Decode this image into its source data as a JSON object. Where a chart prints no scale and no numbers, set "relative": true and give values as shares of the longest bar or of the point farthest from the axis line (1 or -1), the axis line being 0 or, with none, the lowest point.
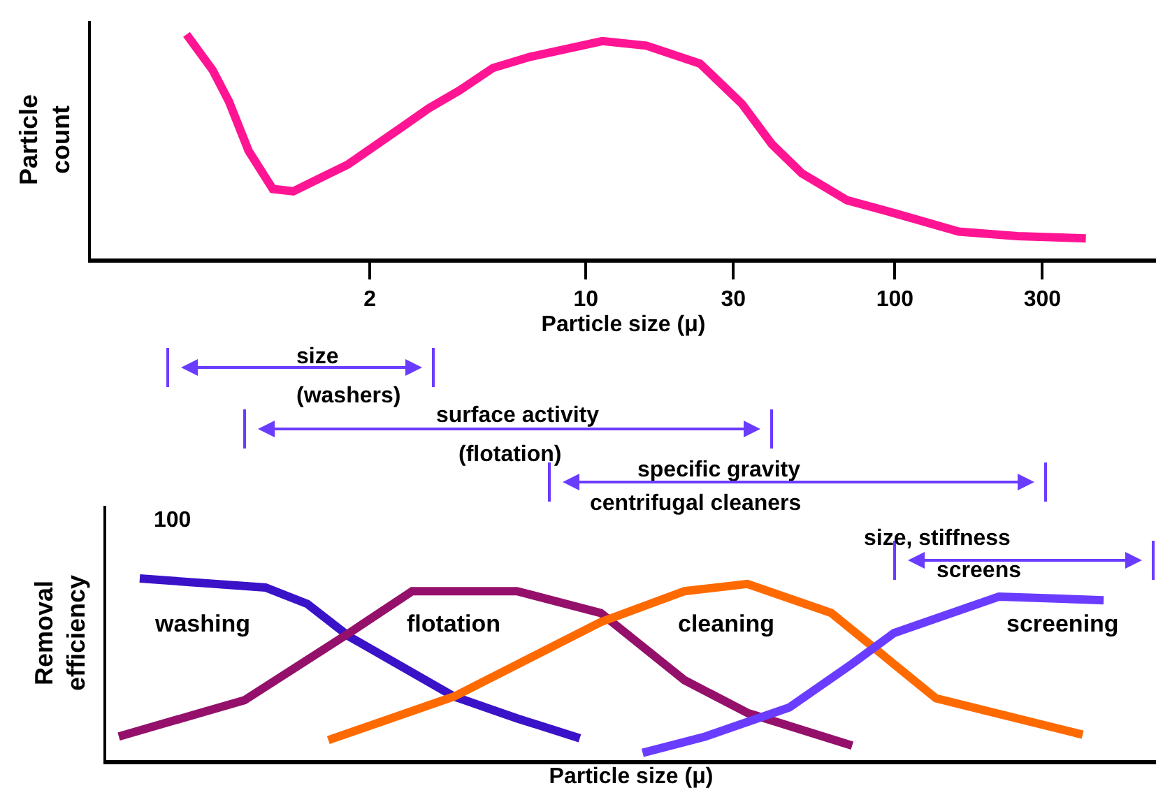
{
  "chart_data": [
    {
      "type": "line",
      "relative": true,
      "log": "x",
      "tick_labels": "x",
      "xlabel": "Particle size (μ)",
      "ylabel": "Particle count",
      "color": "#ff1493",
      "x": [
        0.51,
        0.62,
        0.7,
        0.81,
        0.97,
        1.13,
        1.7,
        2.5,
        3.1,
        3.9,
        5.0,
        6.6,
        11.3,
        15.7,
        23.4,
        32,
        40,
        50,
        70,
        101,
        161,
        249,
        415
      ],
      "values": [
        1,
        0.84,
        0.7,
        0.48,
        0.31,
        0.3,
        0.42,
        0.58,
        0.67,
        0.75,
        0.85,
        0.9,
        0.97,
        0.95,
        0.87,
        0.69,
        0.51,
        0.38,
        0.26,
        0.2,
        0.12,
        0.1,
        0.09
      ],
      "xlim": [
        0.25,
        700
      ],
      "xticks": [
        2,
        10,
        30,
        100,
        300
      ]
    },
    {
      "type": "line",
      "relative": true,
      "tick_labels": false,
      "xlabel": "Particle size (μ)",
      "ylabel": "Removal efficiency",
      "categories": [
        null,
        null,
        null,
        null,
        null,
        null,
        null,
        null,
        null,
        null,
        null,
        null,
        null,
        null,
        null,
        null,
        null,
        null,
        null,
        null,
        null,
        null,
        null,
        null,
        null,
        null,
        null,
        null,
        null,
        null,
        null,
        null,
        null,
        null,
        null,
        null,
        null,
        null,
        null,
        null,
        null,
        null,
        null,
        null,
        null,
        null,
        null,
        null,
        null
      ],
      "series": [
        {
          "name": "washing",
          "color": "#3a12c8",
          "values": [
            null,
            1,
            null,
            null,
            null,
            null,
            null,
            0.95,
            null,
            0.86,
            null,
            0.68,
            null,
            null,
            null,
            null,
            0.35,
            null,
            null,
            0.23,
            null,
            null,
            0.12,
            null,
            null,
            null,
            null,
            null,
            null,
            null,
            null,
            null,
            null,
            null,
            null,
            null,
            null,
            null,
            null,
            null,
            null,
            null,
            null,
            null,
            null,
            null,
            null,
            null,
            null
          ]
        },
        {
          "name": "flotation",
          "color": "#94106a",
          "values": [
            0.13,
            null,
            null,
            null,
            null,
            null,
            0.33,
            null,
            null,
            null,
            null,
            0.7,
            null,
            null,
            0.93,
            null,
            null,
            null,
            null,
            0.93,
            null,
            null,
            null,
            0.81,
            null,
            null,
            null,
            0.44,
            null,
            null,
            0.26,
            null,
            null,
            null,
            null,
            0.08,
            null,
            null,
            null,
            null,
            null,
            null,
            null,
            null,
            null,
            null,
            null,
            null,
            null
          ]
        },
        {
          "name": "cleaning",
          "color": "#ff6a00",
          "values": [
            null,
            null,
            null,
            null,
            null,
            null,
            null,
            null,
            null,
            null,
            0.11,
            null,
            null,
            null,
            null,
            null,
            0.35,
            null,
            null,
            null,
            null,
            null,
            null,
            0.76,
            null,
            null,
            null,
            0.93,
            null,
            null,
            0.97,
            null,
            null,
            null,
            0.81,
            null,
            null,
            null,
            null,
            0.34,
            null,
            null,
            null,
            null,
            null,
            null,
            0.14,
            null,
            null
          ]
        },
        {
          "name": "screening",
          "color": "#6a3cff",
          "values": [
            null,
            null,
            null,
            null,
            null,
            null,
            null,
            null,
            null,
            null,
            null,
            null,
            null,
            null,
            null,
            null,
            null,
            null,
            null,
            null,
            null,
            null,
            null,
            null,
            null,
            0.04,
            null,
            null,
            0.13,
            null,
            null,
            null,
            0.29,
            null,
            null,
            0.53,
            null,
            0.7,
            null,
            null,
            null,
            null,
            0.9,
            null,
            null,
            null,
            null,
            0.88,
            null
          ]
        }
      ],
      "annotations": [
        "size",
        "(washers)",
        "surface activity",
        "(flotation)",
        "specific gravity",
        "centrifugal cleaners",
        "size, stiffness",
        "screens",
        "100"
      ]
    }
  ]
}
